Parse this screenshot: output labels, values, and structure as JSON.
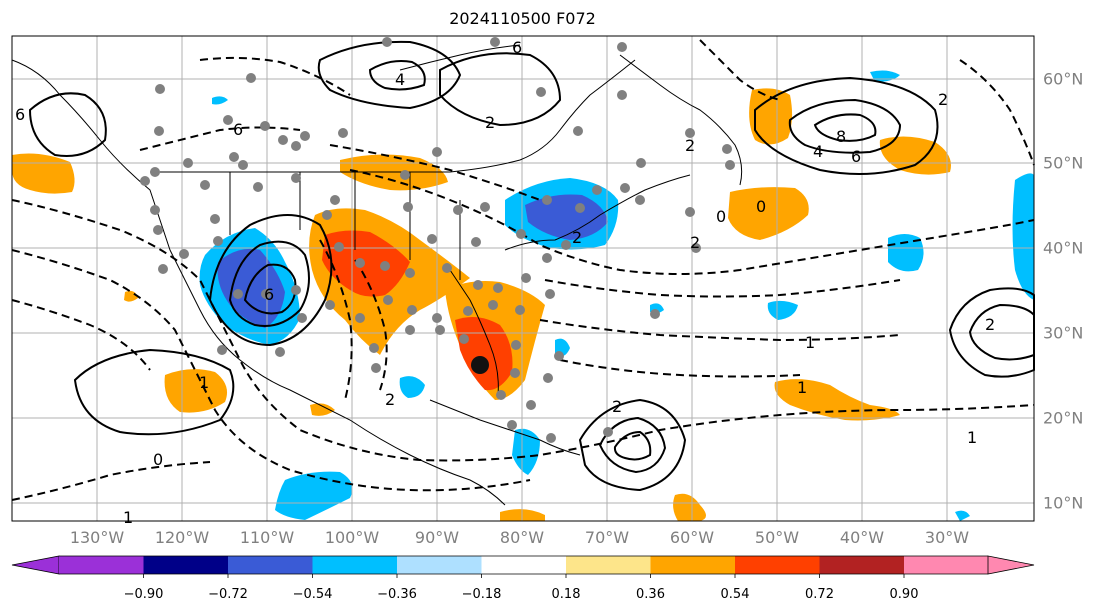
{
  "title": "2024110500 F072",
  "lon_labels": [
    "130°W",
    "120°W",
    "110°W",
    "100°W",
    "90°W",
    "80°W",
    "70°W",
    "60°W",
    "50°W",
    "40°W",
    "30°W"
  ],
  "lat_labels": [
    "60°N",
    "50°N",
    "40°N",
    "30°N",
    "20°N",
    "10°N"
  ],
  "colorbar": {
    "ticks": [
      "−0.90",
      "−0.72",
      "−0.54",
      "−0.36",
      "−0.18",
      "0.18",
      "0.36",
      "0.54",
      "0.72",
      "0.90"
    ],
    "colors": [
      "#9b30d8",
      "#000088",
      "#3a5bd6",
      "#00bfff",
      "#aee0ff",
      "#ffffff",
      "#fde58a",
      "#ffa500",
      "#ff4000",
      "#b22222",
      "#ff88b0"
    ]
  },
  "contour_labels": [
    "6",
    "4",
    "2",
    "8",
    "6",
    "4",
    "0",
    "2",
    "1",
    "2",
    "6",
    "0",
    "2",
    "6",
    "1",
    "2",
    "2",
    "0",
    "1",
    "2",
    "1",
    "1",
    "6",
    "2"
  ],
  "colors": {
    "orange": "#ffa500",
    "red_orange": "#ff4000",
    "deep_red": "#e02000",
    "blue": "#00bfff",
    "dark_blue": "#3a5bd6",
    "station": "#808080",
    "grid": "#b0b0b0"
  }
}
